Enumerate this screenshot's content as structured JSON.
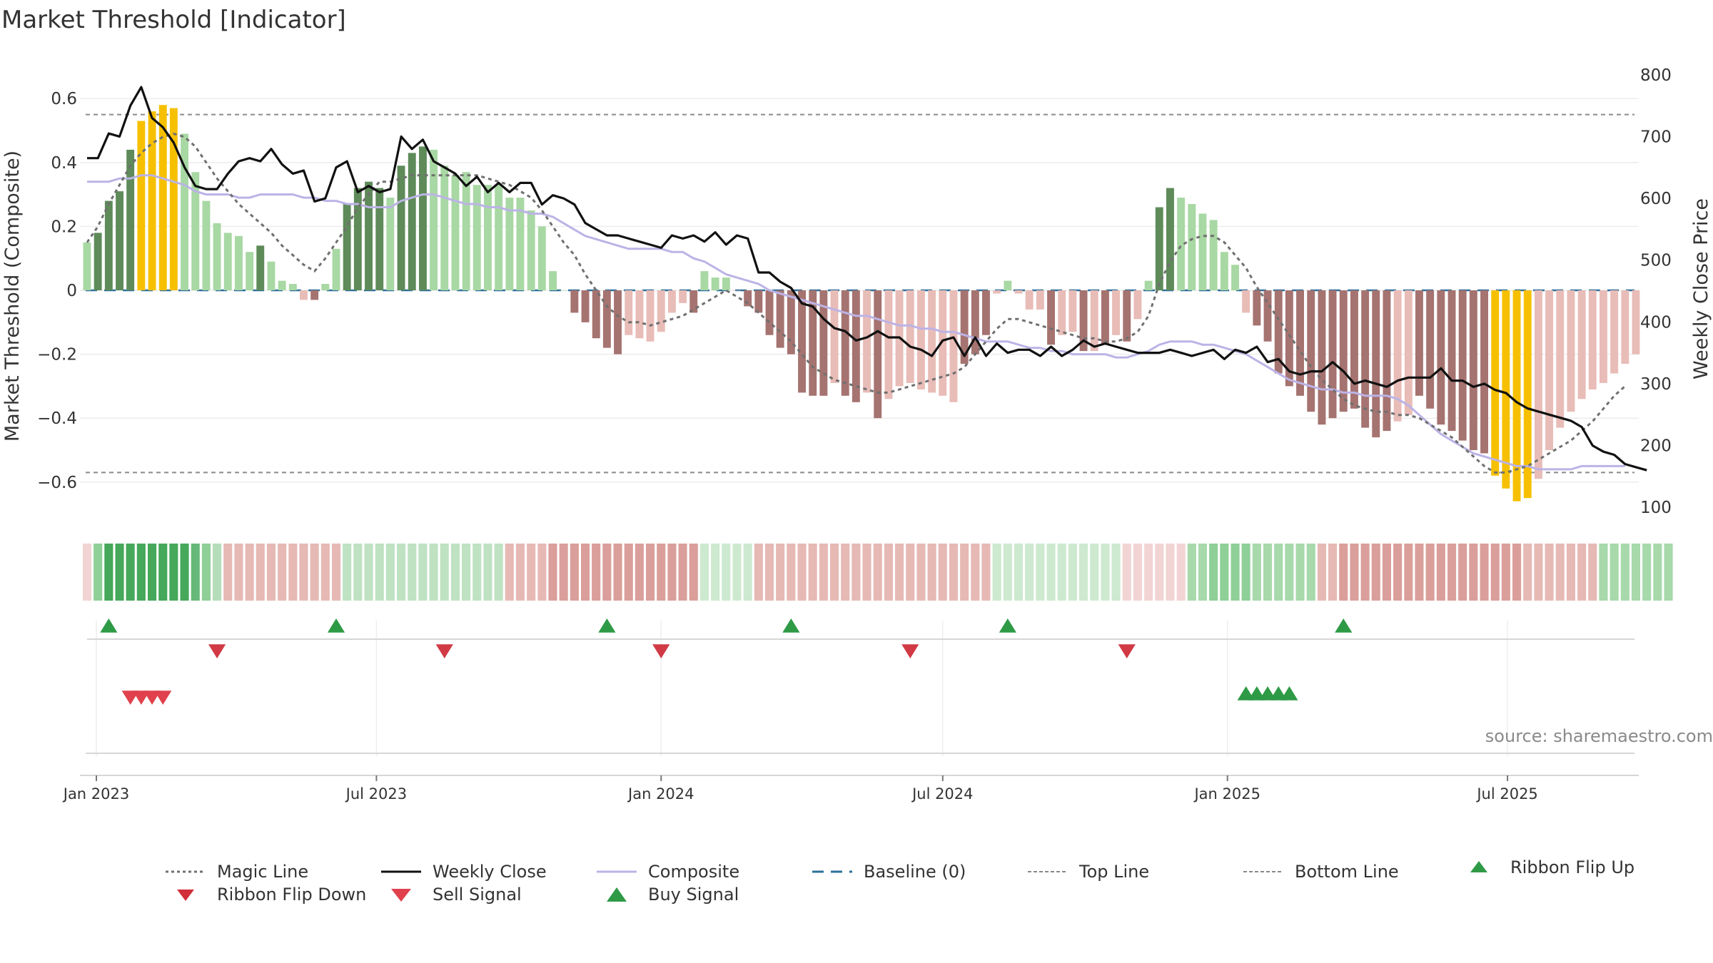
{
  "title": "Market Threshold [Indicator]",
  "source": "source: sharemaestro.com",
  "colors": {
    "gold": "#f6c000",
    "dark_green": "#5e8b59",
    "light_green": "#a8d8a3",
    "dark_red": "#a57370",
    "light_red": "#e8bcb7",
    "close_line": "#111111",
    "composite_line": "#bcb3e6",
    "magic_line": "#707070",
    "baseline": "#2d6f9a",
    "buy_green": "#2f9a46",
    "sell_red": "#d13a45"
  },
  "legend": [
    {
      "label": "Magic Line",
      "icon": "dotted-line"
    },
    {
      "label": "Weekly Close",
      "icon": "solid-line"
    },
    {
      "label": "Composite",
      "icon": "lavender-line"
    },
    {
      "label": "Baseline (0)",
      "icon": "dashed-line"
    },
    {
      "label": "Top Line",
      "icon": "thin-dashed-line"
    },
    {
      "label": "Bottom Line",
      "icon": "thin-dashed-line"
    },
    {
      "label": "Ribbon Flip Up",
      "icon": "triangle-up"
    },
    {
      "label": "Ribbon Flip Down",
      "icon": "triangle-down"
    },
    {
      "label": "Sell Signal",
      "icon": "triangle-down-red"
    },
    {
      "label": "Buy Signal",
      "icon": "triangle-up-green"
    }
  ],
  "chart_data": {
    "type": "bar",
    "title": "Market Threshold [Indicator]",
    "ylabel": "Market Threshold (Composite)",
    "y2label": "Weekly Close Price",
    "ylim": [
      -0.72,
      0.72
    ],
    "y2lim": [
      90,
      810
    ],
    "y_ticks": [
      "0.6",
      "0.4",
      "0.2",
      "0",
      "−0.2",
      "−0.4",
      "−0.6"
    ],
    "y2_ticks": [
      "800",
      "700",
      "600",
      "500",
      "400",
      "300",
      "200",
      "100"
    ],
    "x_ticks": [
      "Jan 2023",
      "Jul 2023",
      "Jan 2024",
      "Jul 2024",
      "Jan 2025",
      "Jul 2025"
    ],
    "start_date": "2022-12-26",
    "top_line": 0.55,
    "bottom_line": -0.57,
    "baseline": 0,
    "grid": true,
    "legend_position": "bottom",
    "histogram": [
      0.15,
      0.18,
      0.28,
      0.31,
      0.44,
      0.53,
      0.56,
      0.58,
      0.57,
      0.49,
      0.37,
      0.28,
      0.21,
      0.18,
      0.17,
      0.12,
      0.14,
      0.09,
      0.03,
      0.02,
      -0.03,
      -0.03,
      0.02,
      0.13,
      0.27,
      0.32,
      0.34,
      0.32,
      0.29,
      0.39,
      0.43,
      0.45,
      0.44,
      0.39,
      0.36,
      0.37,
      0.33,
      0.33,
      0.33,
      0.29,
      0.29,
      0.25,
      0.2,
      0.06,
      0.0,
      -0.07,
      -0.1,
      -0.15,
      -0.18,
      -0.2,
      -0.14,
      -0.15,
      -0.16,
      -0.13,
      -0.07,
      -0.04,
      -0.07,
      0.06,
      0.04,
      0.04,
      0.0,
      -0.05,
      -0.07,
      -0.14,
      -0.18,
      -0.2,
      -0.32,
      -0.33,
      -0.33,
      -0.29,
      -0.33,
      -0.35,
      -0.32,
      -0.4,
      -0.34,
      -0.3,
      -0.29,
      -0.31,
      -0.32,
      -0.33,
      -0.35,
      -0.23,
      -0.2,
      -0.14,
      -0.01,
      0.03,
      -0.01,
      -0.06,
      -0.06,
      -0.17,
      -0.14,
      -0.13,
      -0.19,
      -0.19,
      -0.17,
      -0.14,
      -0.16,
      -0.09,
      0.03,
      0.26,
      0.32,
      0.29,
      0.27,
      0.24,
      0.22,
      0.12,
      0.08,
      -0.07,
      -0.11,
      -0.16,
      -0.26,
      -0.3,
      -0.33,
      -0.38,
      -0.42,
      -0.4,
      -0.38,
      -0.37,
      -0.43,
      -0.46,
      -0.44,
      -0.41,
      -0.39,
      -0.33,
      -0.37,
      -0.42,
      -0.44,
      -0.47,
      -0.5,
      -0.51,
      -0.58,
      -0.62,
      -0.66,
      -0.65,
      -0.59,
      -0.5,
      -0.43,
      -0.38,
      -0.34,
      -0.31,
      -0.29,
      -0.26,
      -0.23,
      -0.2
    ],
    "histogram_colors": [
      "light_green",
      "dark_green",
      "dark_green",
      "dark_green",
      "dark_green",
      "gold",
      "gold",
      "gold",
      "gold",
      "light_green",
      "light_green",
      "light_green",
      "light_green",
      "light_green",
      "light_green",
      "light_green",
      "dark_green",
      "light_green",
      "light_green",
      "light_green",
      "light_red",
      "dark_red",
      "light_green",
      "light_green",
      "dark_green",
      "dark_green",
      "dark_green",
      "dark_green",
      "light_green",
      "dark_green",
      "dark_green",
      "dark_green",
      "light_green",
      "light_green",
      "light_green",
      "light_green",
      "light_green",
      "light_green",
      "light_green",
      "light_green",
      "light_green",
      "light_green",
      "light_green",
      "light_green",
      "light_green",
      "dark_red",
      "dark_red",
      "dark_red",
      "dark_red",
      "dark_red",
      "light_red",
      "light_red",
      "light_red",
      "light_red",
      "light_red",
      "light_red",
      "dark_red",
      "light_green",
      "light_green",
      "light_green",
      "light_red",
      "dark_red",
      "dark_red",
      "dark_red",
      "dark_red",
      "dark_red",
      "dark_red",
      "dark_red",
      "dark_red",
      "light_red",
      "dark_red",
      "dark_red",
      "light_red",
      "dark_red",
      "light_red",
      "light_red",
      "light_red",
      "light_red",
      "light_red",
      "light_red",
      "light_red",
      "dark_red",
      "dark_red",
      "dark_red",
      "light_red",
      "light_green",
      "light_red",
      "light_red",
      "light_red",
      "dark_red",
      "light_red",
      "light_red",
      "dark_red",
      "light_red",
      "dark_red",
      "light_red",
      "dark_red",
      "light_red",
      "light_green",
      "dark_green",
      "dark_green",
      "light_green",
      "light_green",
      "light_green",
      "light_green",
      "light_green",
      "light_green",
      "light_red",
      "dark_red",
      "dark_red",
      "dark_red",
      "dark_red",
      "dark_red",
      "dark_red",
      "dark_red",
      "dark_red",
      "dark_red",
      "dark_red",
      "dark_red",
      "dark_red",
      "dark_red",
      "light_red",
      "light_red",
      "dark_red",
      "dark_red",
      "dark_red",
      "dark_red",
      "dark_red",
      "dark_red",
      "dark_red",
      "gold",
      "gold",
      "gold",
      "gold",
      "light_red",
      "light_red",
      "light_red",
      "light_red",
      "light_red",
      "light_red",
      "light_red",
      "light_red",
      "light_red",
      "light_red"
    ],
    "ribbon_colors": [
      "#f1d4d3",
      "#8fcf98",
      "#45a85a",
      "#45a85a",
      "#45a85a",
      "#45a85a",
      "#45a85a",
      "#45a85a",
      "#45a85a",
      "#45a85a",
      "#66b978",
      "#8fcf98",
      "#b5ddb9",
      "#e6b9b5",
      "#e6b9b5",
      "#e6b9b5",
      "#e6b9b5",
      "#e6b9b5",
      "#e6b9b5",
      "#e6b9b5",
      "#e6b9b5",
      "#e6b9b5",
      "#e6b9b5",
      "#e6b9b5",
      "#bfe2c2",
      "#bfe2c2",
      "#bfe2c2",
      "#bfe2c2",
      "#bfe2c2",
      "#bfe2c2",
      "#bfe2c2",
      "#bfe2c2",
      "#bfe2c2",
      "#bfe2c2",
      "#bfe2c2",
      "#bfe2c2",
      "#bfe2c2",
      "#bfe2c2",
      "#bfe2c2",
      "#e6b9b5",
      "#e6b9b5",
      "#e6b9b5",
      "#e6b9b5",
      "#da9f9b",
      "#da9f9b",
      "#da9f9b",
      "#da9f9b",
      "#da9f9b",
      "#da9f9b",
      "#da9f9b",
      "#da9f9b",
      "#da9f9b",
      "#da9f9b",
      "#da9f9b",
      "#da9f9b",
      "#da9f9b",
      "#da9f9b",
      "#cde9cf",
      "#cde9cf",
      "#cde9cf",
      "#cde9cf",
      "#cde9cf",
      "#e6b9b5",
      "#e6b9b5",
      "#e6b9b5",
      "#e6b9b5",
      "#e6b9b5",
      "#e6b9b5",
      "#e6b9b5",
      "#e6b9b5",
      "#e6b9b5",
      "#e6b9b5",
      "#e6b9b5",
      "#e6b9b5",
      "#e6b9b5",
      "#e6b9b5",
      "#e6b9b5",
      "#e6b9b5",
      "#e6b9b5",
      "#e6b9b5",
      "#e6b9b5",
      "#e6b9b5",
      "#e6b9b5",
      "#e6b9b5",
      "#cde9cf",
      "#cde9cf",
      "#cde9cf",
      "#cde9cf",
      "#cde9cf",
      "#cde9cf",
      "#cde9cf",
      "#cde9cf",
      "#cde9cf",
      "#cde9cf",
      "#cde9cf",
      "#cde9cf",
      "#f1d4d3",
      "#f1d4d3",
      "#f1d4d3",
      "#f1d4d3",
      "#f1d4d3",
      "#f1d4d3",
      "#a7d9ab",
      "#a7d9ab",
      "#8fcf98",
      "#8fcf98",
      "#8fcf98",
      "#8fcf98",
      "#a7d9ab",
      "#a7d9ab",
      "#a7d9ab",
      "#a7d9ab",
      "#a7d9ab",
      "#a7d9ab",
      "#e6b9b5",
      "#e6b9b5",
      "#da9f9b",
      "#da9f9b",
      "#da9f9b",
      "#da9f9b",
      "#da9f9b",
      "#da9f9b",
      "#da9f9b",
      "#da9f9b",
      "#da9f9b",
      "#da9f9b",
      "#da9f9b",
      "#da9f9b",
      "#da9f9b",
      "#da9f9b",
      "#da9f9b",
      "#da9f9b",
      "#da9f9b",
      "#e6b9b5",
      "#e6b9b5",
      "#e6b9b5",
      "#e6b9b5",
      "#e6b9b5",
      "#e6b9b5",
      "#e6b9b5",
      "#a7d9ab",
      "#a7d9ab",
      "#a7d9ab",
      "#a7d9ab",
      "#a7d9ab",
      "#a7d9ab",
      "#a7d9ab"
    ],
    "magic_line": [
      0.15,
      0.2,
      0.27,
      0.33,
      0.39,
      0.43,
      0.46,
      0.48,
      0.49,
      0.48,
      0.45,
      0.4,
      0.35,
      0.31,
      0.27,
      0.24,
      0.21,
      0.18,
      0.14,
      0.11,
      0.08,
      0.06,
      0.1,
      0.15,
      0.2,
      0.26,
      0.3,
      0.34,
      0.34,
      0.35,
      0.36,
      0.36,
      0.36,
      0.36,
      0.36,
      0.36,
      0.36,
      0.35,
      0.34,
      0.33,
      0.31,
      0.29,
      0.25,
      0.2,
      0.15,
      0.11,
      0.05,
      0.0,
      -0.05,
      -0.08,
      -0.1,
      -0.1,
      -0.11,
      -0.1,
      -0.09,
      -0.08,
      -0.06,
      -0.04,
      -0.02,
      0.0,
      -0.02,
      -0.04,
      -0.07,
      -0.1,
      -0.13,
      -0.16,
      -0.2,
      -0.24,
      -0.26,
      -0.28,
      -0.29,
      -0.3,
      -0.31,
      -0.32,
      -0.32,
      -0.31,
      -0.3,
      -0.29,
      -0.28,
      -0.27,
      -0.26,
      -0.24,
      -0.2,
      -0.16,
      -0.12,
      -0.09,
      -0.09,
      -0.1,
      -0.11,
      -0.12,
      -0.13,
      -0.14,
      -0.15,
      -0.15,
      -0.16,
      -0.16,
      -0.15,
      -0.13,
      -0.08,
      0.02,
      0.09,
      0.14,
      0.16,
      0.17,
      0.17,
      0.15,
      0.11,
      0.07,
      0.01,
      -0.04,
      -0.09,
      -0.14,
      -0.19,
      -0.24,
      -0.28,
      -0.31,
      -0.34,
      -0.36,
      -0.37,
      -0.38,
      -0.38,
      -0.39,
      -0.39,
      -0.4,
      -0.42,
      -0.44,
      -0.46,
      -0.49,
      -0.52,
      -0.55,
      -0.57,
      -0.57,
      -0.56,
      -0.55,
      -0.53,
      -0.51,
      -0.49,
      -0.47,
      -0.44,
      -0.41,
      -0.37,
      -0.33,
      -0.3
    ],
    "composite": [
      0.34,
      0.34,
      0.34,
      0.35,
      0.35,
      0.36,
      0.36,
      0.35,
      0.34,
      0.33,
      0.31,
      0.3,
      0.3,
      0.3,
      0.29,
      0.29,
      0.3,
      0.3,
      0.3,
      0.3,
      0.29,
      0.29,
      0.28,
      0.28,
      0.27,
      0.27,
      0.26,
      0.26,
      0.26,
      0.28,
      0.29,
      0.3,
      0.3,
      0.29,
      0.28,
      0.27,
      0.27,
      0.26,
      0.26,
      0.25,
      0.25,
      0.24,
      0.24,
      0.23,
      0.21,
      0.19,
      0.17,
      0.16,
      0.15,
      0.14,
      0.13,
      0.13,
      0.13,
      0.13,
      0.12,
      0.12,
      0.1,
      0.09,
      0.07,
      0.05,
      0.04,
      0.03,
      0.02,
      0.0,
      -0.01,
      -0.02,
      -0.03,
      -0.04,
      -0.05,
      -0.06,
      -0.07,
      -0.08,
      -0.08,
      -0.09,
      -0.1,
      -0.11,
      -0.11,
      -0.12,
      -0.12,
      -0.13,
      -0.13,
      -0.14,
      -0.15,
      -0.16,
      -0.16,
      -0.16,
      -0.17,
      -0.18,
      -0.18,
      -0.19,
      -0.19,
      -0.2,
      -0.2,
      -0.2,
      -0.2,
      -0.21,
      -0.21,
      -0.2,
      -0.19,
      -0.17,
      -0.16,
      -0.16,
      -0.16,
      -0.17,
      -0.17,
      -0.18,
      -0.19,
      -0.2,
      -0.22,
      -0.24,
      -0.26,
      -0.28,
      -0.29,
      -0.3,
      -0.31,
      -0.31,
      -0.32,
      -0.32,
      -0.33,
      -0.33,
      -0.33,
      -0.34,
      -0.36,
      -0.39,
      -0.42,
      -0.45,
      -0.47,
      -0.49,
      -0.51,
      -0.52,
      -0.53,
      -0.54,
      -0.55,
      -0.55,
      -0.56,
      -0.56,
      -0.56,
      -0.56,
      -0.55,
      -0.55,
      -0.55,
      -0.55,
      -0.55
    ],
    "weekly_close": [
      665,
      665,
      705,
      700,
      750,
      780,
      730,
      715,
      690,
      650,
      620,
      615,
      615,
      640,
      660,
      665,
      660,
      680,
      655,
      640,
      645,
      595,
      600,
      650,
      660,
      610,
      620,
      610,
      615,
      700,
      680,
      695,
      660,
      650,
      640,
      620,
      635,
      610,
      625,
      610,
      625,
      625,
      590,
      605,
      600,
      590,
      560,
      550,
      540,
      540,
      535,
      530,
      525,
      520,
      540,
      535,
      540,
      530,
      545,
      525,
      540,
      535,
      480,
      480,
      465,
      455,
      430,
      425,
      405,
      390,
      385,
      370,
      375,
      385,
      375,
      375,
      360,
      355,
      345,
      370,
      375,
      345,
      375,
      345,
      365,
      350,
      355,
      355,
      345,
      360,
      345,
      355,
      370,
      360,
      365,
      360,
      355,
      350,
      350,
      350,
      355,
      350,
      345,
      350,
      355,
      340,
      355,
      350,
      360,
      335,
      340,
      320,
      315,
      320,
      320,
      335,
      320,
      300,
      305,
      300,
      295,
      305,
      310,
      310,
      310,
      325,
      305,
      305,
      295,
      300,
      290,
      285,
      270,
      260,
      255,
      250,
      245,
      240,
      230,
      200,
      190,
      185,
      170,
      165,
      160
    ],
    "buy_signals": [
      2,
      23,
      48,
      65,
      85,
      116
    ],
    "sell_signals": [
      12,
      33,
      53,
      76,
      96
    ],
    "flip_up": [
      107,
      108,
      109,
      110,
      111
    ],
    "flip_down": [
      4,
      5,
      6,
      7
    ]
  }
}
